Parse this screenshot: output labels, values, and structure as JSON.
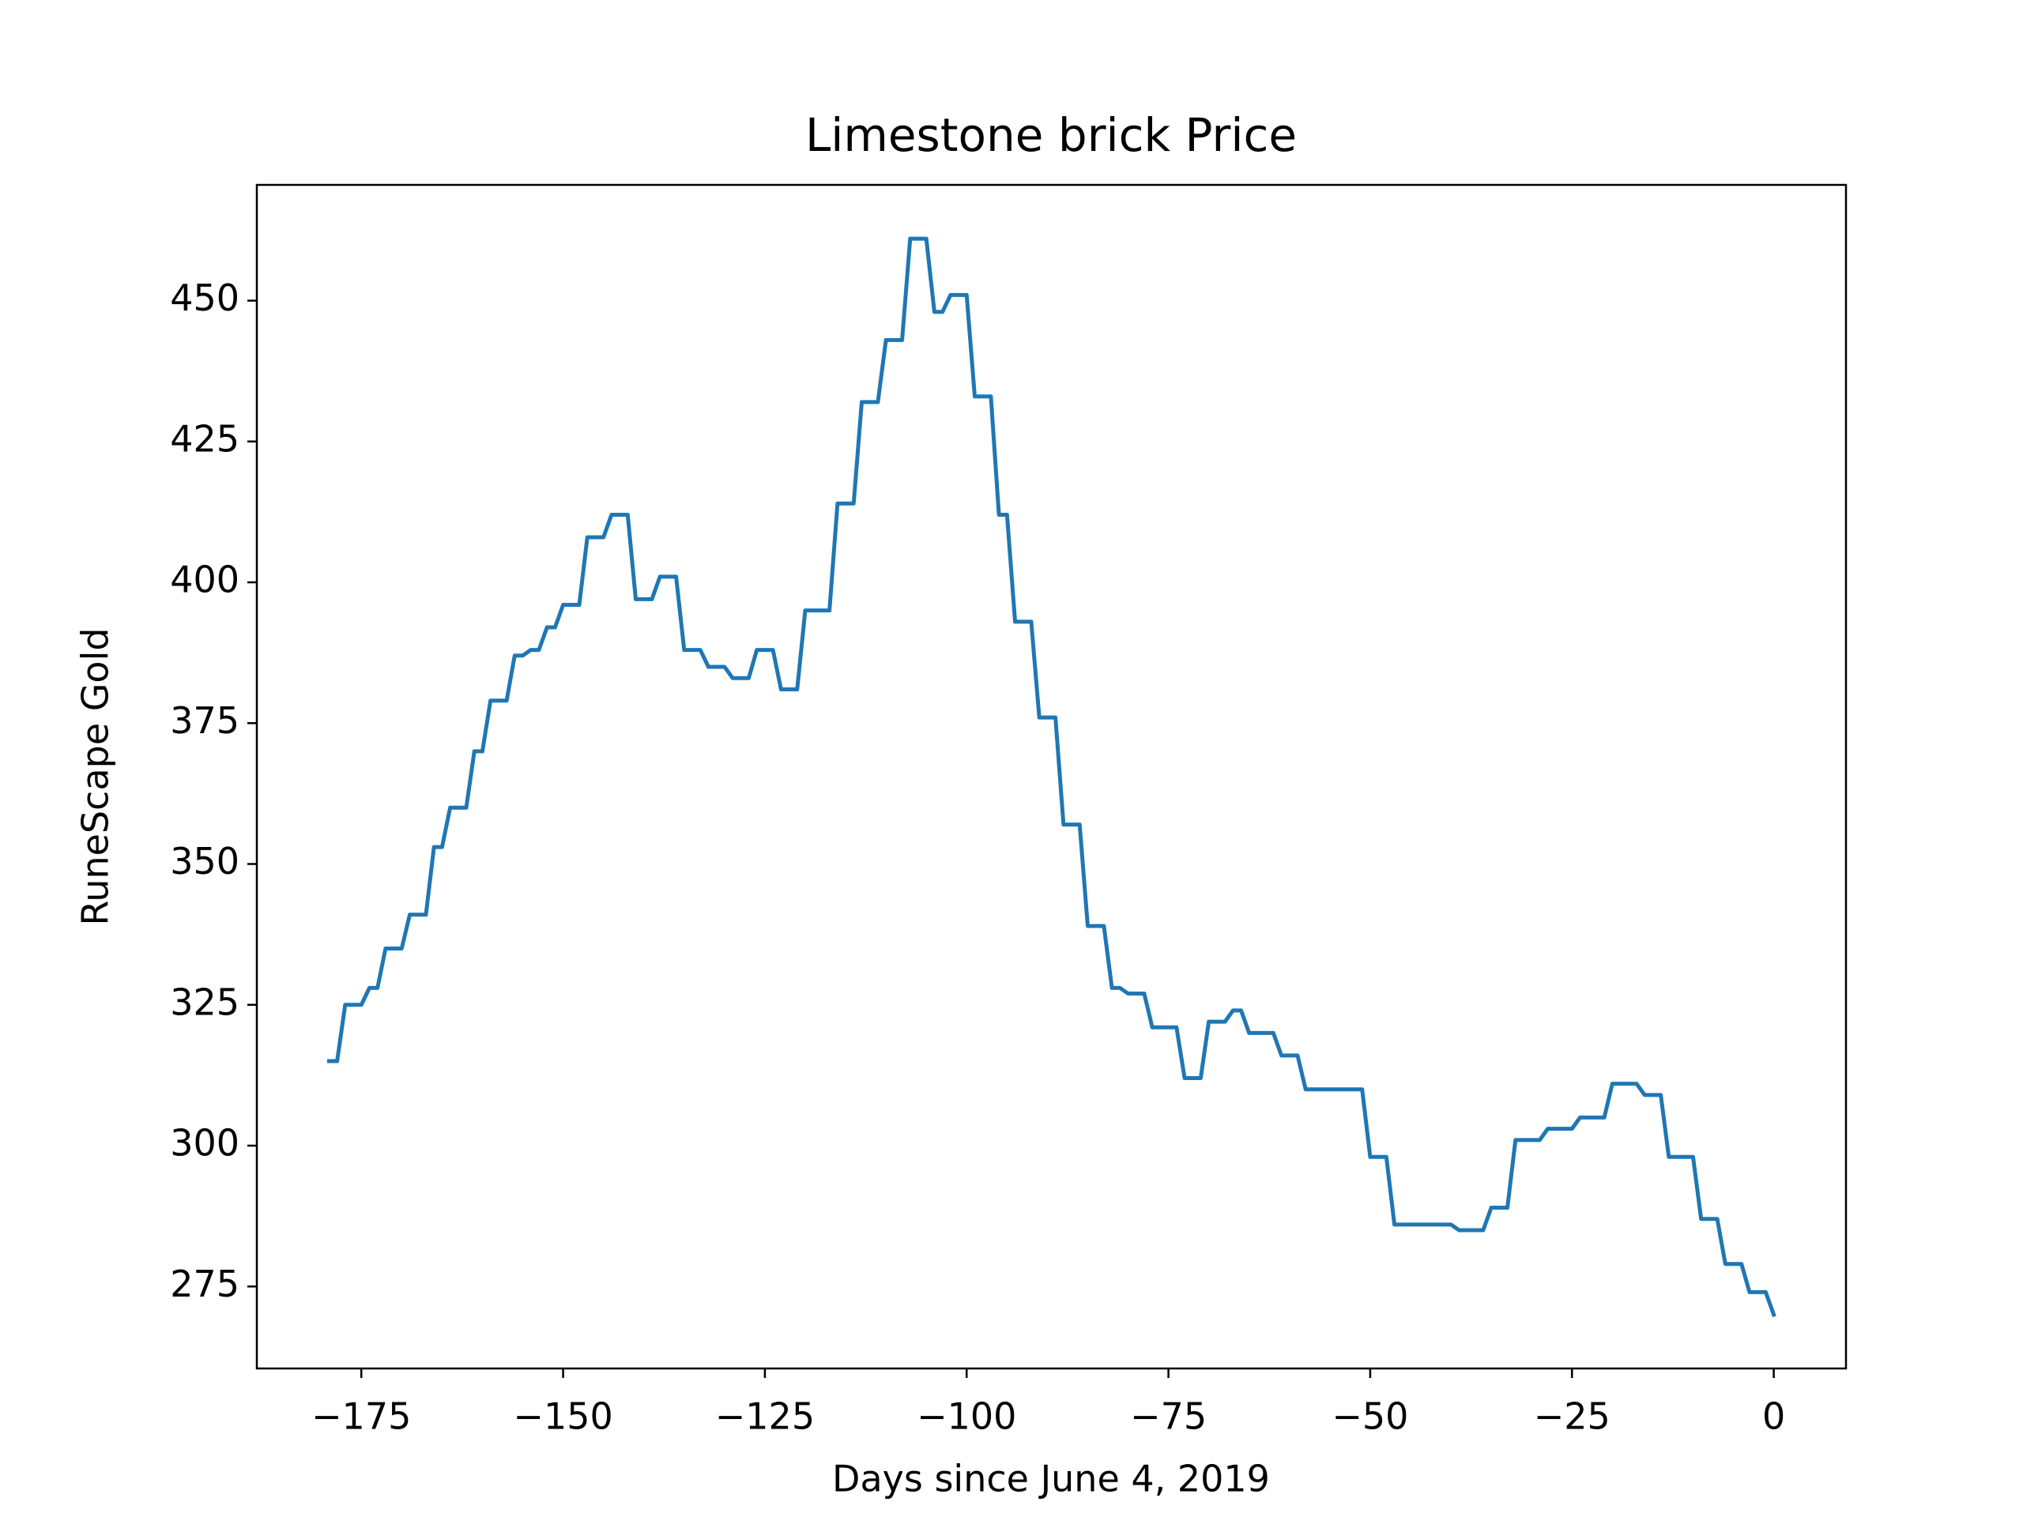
{
  "chart_data": {
    "type": "line",
    "title": "Limestone brick Price",
    "xlabel": "Days since June 4, 2019",
    "ylabel": "RuneScape Gold",
    "x": [
      -179,
      -178,
      -177,
      -176,
      -175,
      -174,
      -173,
      -172,
      -171,
      -170,
      -169,
      -168,
      -167,
      -166,
      -165,
      -164,
      -163,
      -162,
      -161,
      -160,
      -159,
      -158,
      -157,
      -156,
      -155,
      -154,
      -153,
      -152,
      -151,
      -150,
      -149,
      -148,
      -147,
      -146,
      -145,
      -144,
      -143,
      -142,
      -141,
      -140,
      -139,
      -138,
      -137,
      -136,
      -135,
      -134,
      -133,
      -132,
      -131,
      -130,
      -129,
      -128,
      -127,
      -126,
      -125,
      -124,
      -123,
      -122,
      -121,
      -120,
      -119,
      -118,
      -117,
      -116,
      -115,
      -114,
      -113,
      -112,
      -111,
      -110,
      -109,
      -108,
      -107,
      -106,
      -105,
      -104,
      -103,
      -102,
      -101,
      -100,
      -99,
      -98,
      -97,
      -96,
      -95,
      -94,
      -93,
      -92,
      -91,
      -90,
      -89,
      -88,
      -87,
      -86,
      -85,
      -84,
      -83,
      -82,
      -81,
      -80,
      -79,
      -78,
      -77,
      -76,
      -75,
      -74,
      -73,
      -72,
      -71,
      -70,
      -69,
      -68,
      -67,
      -66,
      -65,
      -64,
      -63,
      -62,
      -61,
      -60,
      -59,
      -58,
      -57,
      -56,
      -55,
      -54,
      -53,
      -52,
      -51,
      -50,
      -49,
      -48,
      -47,
      -46,
      -45,
      -44,
      -43,
      -42,
      -41,
      -40,
      -39,
      -38,
      -37,
      -36,
      -35,
      -34,
      -33,
      -32,
      -31,
      -30,
      -29,
      -28,
      -27,
      -26,
      -25,
      -24,
      -23,
      -22,
      -21,
      -20,
      -19,
      -18,
      -17,
      -16,
      -15,
      -14,
      -13,
      -12,
      -11,
      -10,
      -9,
      -8,
      -7,
      -6,
      -5,
      -4,
      -3,
      -2,
      -1,
      0
    ],
    "series": [
      {
        "name": "Limestone brick",
        "color": "#1f77b4",
        "values": [
          315,
          315,
          325,
          325,
          325,
          328,
          328,
          335,
          335,
          335,
          341,
          341,
          341,
          353,
          353,
          360,
          360,
          360,
          370,
          370,
          379,
          379,
          379,
          387,
          387,
          388,
          388,
          392,
          392,
          396,
          396,
          396,
          408,
          408,
          408,
          412,
          412,
          412,
          397,
          397,
          397,
          401,
          401,
          401,
          388,
          388,
          388,
          385,
          385,
          385,
          383,
          383,
          383,
          388,
          388,
          388,
          381,
          381,
          381,
          395,
          395,
          395,
          395,
          414,
          414,
          414,
          432,
          432,
          432,
          443,
          443,
          443,
          461,
          461,
          461,
          448,
          448,
          451,
          451,
          451,
          433,
          433,
          433,
          412,
          412,
          393,
          393,
          393,
          376,
          376,
          376,
          357,
          357,
          357,
          339,
          339,
          339,
          328,
          328,
          327,
          327,
          327,
          321,
          321,
          321,
          321,
          312,
          312,
          312,
          322,
          322,
          322,
          324,
          324,
          320,
          320,
          320,
          320,
          316,
          316,
          316,
          310,
          310,
          310,
          310,
          310,
          310,
          310,
          310,
          298,
          298,
          298,
          286,
          286,
          286,
          286,
          286,
          286,
          286,
          286,
          285,
          285,
          285,
          285,
          289,
          289,
          289,
          301,
          301,
          301,
          301,
          303,
          303,
          303,
          303,
          305,
          305,
          305,
          305,
          311,
          311,
          311,
          311,
          309,
          309,
          309,
          298,
          298,
          298,
          298,
          287,
          287,
          287,
          279,
          279,
          279,
          274,
          274,
          274,
          270
        ]
      }
    ],
    "xlim": [
      -187.95,
      8.95
    ],
    "ylim": [
      260.45,
      470.55
    ],
    "xticks": [
      {
        "value": -175,
        "label": "−175"
      },
      {
        "value": -150,
        "label": "−150"
      },
      {
        "value": -125,
        "label": "−125"
      },
      {
        "value": -100,
        "label": "−100"
      },
      {
        "value": -75,
        "label": "−75"
      },
      {
        "value": -50,
        "label": "−50"
      },
      {
        "value": -25,
        "label": "−25"
      },
      0
    ],
    "yticks": [
      275,
      300,
      325,
      350,
      375,
      400,
      425,
      450
    ],
    "grid": false
  }
}
